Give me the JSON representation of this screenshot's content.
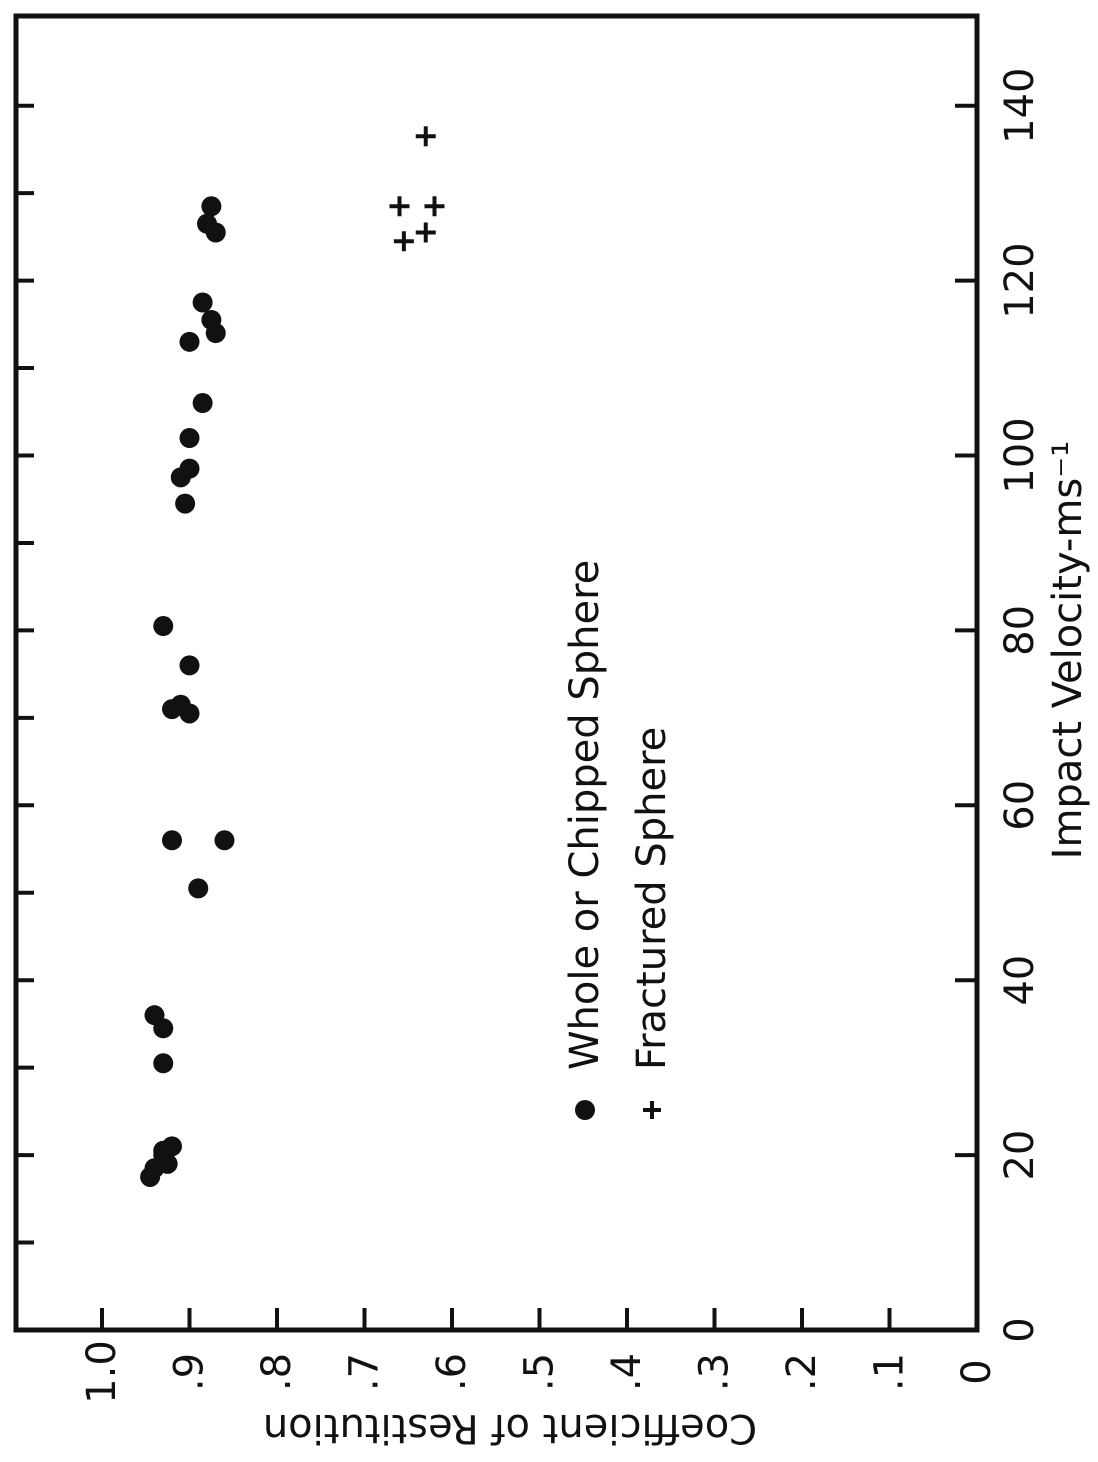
{
  "chart_data": {
    "type": "scatter",
    "title": "",
    "xlabel": "Impact Velocity-ms⁻¹",
    "ylabel": "Coefficient of Restitution",
    "xlim": [
      0,
      150
    ],
    "ylim": [
      0,
      1.05
    ],
    "x_ticks": [
      0,
      20,
      40,
      60,
      80,
      100,
      120,
      140
    ],
    "x_tick_labels": [
      "0",
      "20",
      "40",
      "60",
      "80",
      "100",
      "120",
      "140"
    ],
    "y_ticks": [
      0,
      0.1,
      0.2,
      0.3,
      0.4,
      0.5,
      0.6,
      0.7,
      0.8,
      0.9,
      1.0
    ],
    "y_tick_labels": [
      "0",
      ".1",
      ".2",
      ".3",
      ".4",
      ".5",
      ".6",
      ".7",
      ".8",
      ".9",
      "1.0"
    ],
    "grid": false,
    "orientation": "rotated 90° clockwise",
    "legend_position": "inside, lower-center",
    "series": [
      {
        "name": "Whole or Chipped Sphere",
        "marker": "dot",
        "color": "#111111",
        "points": [
          {
            "x": 17.5,
            "y": 0.945
          },
          {
            "x": 18.5,
            "y": 0.94
          },
          {
            "x": 19.0,
            "y": 0.925
          },
          {
            "x": 20.0,
            "y": 0.93
          },
          {
            "x": 20.5,
            "y": 0.93
          },
          {
            "x": 21.0,
            "y": 0.92
          },
          {
            "x": 30.5,
            "y": 0.93
          },
          {
            "x": 34.5,
            "y": 0.93
          },
          {
            "x": 36.0,
            "y": 0.94
          },
          {
            "x": 50.5,
            "y": 0.89
          },
          {
            "x": 56.0,
            "y": 0.92
          },
          {
            "x": 56.0,
            "y": 0.86
          },
          {
            "x": 70.5,
            "y": 0.9
          },
          {
            "x": 71.0,
            "y": 0.92
          },
          {
            "x": 71.5,
            "y": 0.91
          },
          {
            "x": 76.0,
            "y": 0.9
          },
          {
            "x": 80.5,
            "y": 0.93
          },
          {
            "x": 94.5,
            "y": 0.905
          },
          {
            "x": 97.5,
            "y": 0.91
          },
          {
            "x": 98.5,
            "y": 0.9
          },
          {
            "x": 102.0,
            "y": 0.9
          },
          {
            "x": 106.0,
            "y": 0.885
          },
          {
            "x": 113.0,
            "y": 0.9
          },
          {
            "x": 114.0,
            "y": 0.87
          },
          {
            "x": 115.5,
            "y": 0.875
          },
          {
            "x": 117.5,
            "y": 0.885
          },
          {
            "x": 125.5,
            "y": 0.87
          },
          {
            "x": 126.5,
            "y": 0.88
          },
          {
            "x": 128.5,
            "y": 0.875
          }
        ]
      },
      {
        "name": "Fractured Sphere",
        "marker": "plus",
        "color": "#111111",
        "points": [
          {
            "x": 124.5,
            "y": 0.655
          },
          {
            "x": 125.5,
            "y": 0.63
          },
          {
            "x": 128.5,
            "y": 0.66
          },
          {
            "x": 128.5,
            "y": 0.62
          },
          {
            "x": 136.5,
            "y": 0.63
          }
        ]
      }
    ]
  }
}
